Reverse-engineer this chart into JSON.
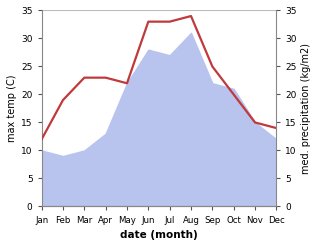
{
  "months": [
    "Jan",
    "Feb",
    "Mar",
    "Apr",
    "May",
    "Jun",
    "Jul",
    "Aug",
    "Sep",
    "Oct",
    "Nov",
    "Dec"
  ],
  "precipitation": [
    10,
    9,
    10,
    13,
    22,
    28,
    27,
    31,
    22,
    21,
    15,
    12
  ],
  "max_temp": [
    12,
    19,
    23,
    23,
    22,
    33,
    33,
    34,
    25,
    20,
    15,
    14
  ],
  "precip_color": "#b8c4ee",
  "temp_color": "#c0393b",
  "ylabel_left": "max temp (C)",
  "ylabel_right": "med. precipitation (kg/m2)",
  "xlabel": "date (month)",
  "ylim": [
    0,
    35
  ],
  "yticks": [
    0,
    5,
    10,
    15,
    20,
    25,
    30,
    35
  ],
  "bg_color": "#ffffff",
  "top_line_color": "#bbbbbb",
  "tick_color": "#555555"
}
